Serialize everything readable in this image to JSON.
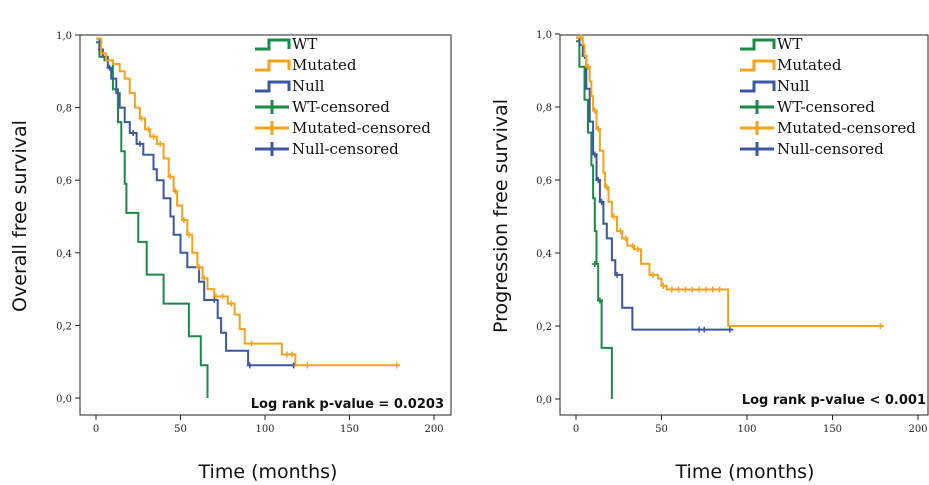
{
  "colors": {
    "WT": "#1a8a47",
    "Mutated": "#f5a31a",
    "Null": "#3b56a3"
  },
  "chart_data": [
    {
      "type": "line",
      "subtype": "kaplan-meier",
      "xlabel": "Time (months)",
      "ylabel": "Overall free survival",
      "xlim": [
        0,
        200
      ],
      "ylim": [
        0.0,
        1.0
      ],
      "xticks": [
        "0",
        "50",
        "100",
        "150",
        "200"
      ],
      "yticks": [
        "0,0",
        "0,2",
        "0,4",
        "0,6",
        "0,8",
        "1,0"
      ],
      "annotation": "Log rank p-value = 0.0203",
      "legend": [
        "WT",
        "Mutated",
        "Null",
        "WT-censored",
        "Mutated-censored",
        "Null-censored"
      ],
      "legend_position": "top-right",
      "series": [
        {
          "name": "WT",
          "steps": [
            [
              0,
              0.98
            ],
            [
              2,
              0.94
            ],
            [
              5,
              0.93
            ],
            [
              10,
              0.85
            ],
            [
              13,
              0.76
            ],
            [
              15,
              0.68
            ],
            [
              17,
              0.59
            ],
            [
              18,
              0.51
            ],
            [
              25,
              0.43
            ],
            [
              30,
              0.34
            ],
            [
              40,
              0.26
            ],
            [
              50,
              0.26
            ],
            [
              55,
              0.17
            ],
            [
              62,
              0.09
            ],
            [
              66,
              0.0
            ]
          ],
          "censored": [
            [
              2,
              0.98
            ]
          ]
        },
        {
          "name": "Mutated",
          "steps": [
            [
              0,
              0.99
            ],
            [
              3,
              0.95
            ],
            [
              6,
              0.93
            ],
            [
              10,
              0.92
            ],
            [
              14,
              0.9
            ],
            [
              17,
              0.88
            ],
            [
              20,
              0.84
            ],
            [
              23,
              0.8
            ],
            [
              26,
              0.77
            ],
            [
              29,
              0.74
            ],
            [
              32,
              0.72
            ],
            [
              36,
              0.7
            ],
            [
              40,
              0.66
            ],
            [
              43,
              0.61
            ],
            [
              46,
              0.57
            ],
            [
              48,
              0.53
            ],
            [
              51,
              0.49
            ],
            [
              54,
              0.45
            ],
            [
              57,
              0.4
            ],
            [
              60,
              0.36
            ],
            [
              63,
              0.33
            ],
            [
              66,
              0.3
            ],
            [
              70,
              0.28
            ],
            [
              78,
              0.26
            ],
            [
              82,
              0.23
            ],
            [
              85,
              0.19
            ],
            [
              88,
              0.15
            ],
            [
              95,
              0.15
            ],
            [
              110,
              0.12
            ],
            [
              118,
              0.09
            ],
            [
              180,
              0.09
            ]
          ],
          "censored": [
            [
              27,
              0.77
            ],
            [
              31,
              0.74
            ],
            [
              34,
              0.72
            ],
            [
              38,
              0.7
            ],
            [
              44,
              0.61
            ],
            [
              47,
              0.57
            ],
            [
              52,
              0.49
            ],
            [
              55,
              0.45
            ],
            [
              61,
              0.36
            ],
            [
              64,
              0.33
            ],
            [
              71,
              0.28
            ],
            [
              75,
              0.28
            ],
            [
              80,
              0.26
            ],
            [
              92,
              0.15
            ],
            [
              113,
              0.12
            ],
            [
              116,
              0.12
            ],
            [
              125,
              0.09
            ],
            [
              178,
              0.09
            ]
          ]
        },
        {
          "name": "Null",
          "steps": [
            [
              0,
              0.99
            ],
            [
              2,
              0.96
            ],
            [
              4,
              0.94
            ],
            [
              7,
              0.91
            ],
            [
              9,
              0.88
            ],
            [
              12,
              0.84
            ],
            [
              14,
              0.8
            ],
            [
              17,
              0.76
            ],
            [
              20,
              0.73
            ],
            [
              24,
              0.7
            ],
            [
              28,
              0.67
            ],
            [
              34,
              0.63
            ],
            [
              36,
              0.6
            ],
            [
              40,
              0.55
            ],
            [
              44,
              0.5
            ],
            [
              46,
              0.45
            ],
            [
              50,
              0.4
            ],
            [
              54,
              0.36
            ],
            [
              61,
              0.32
            ],
            [
              64,
              0.27
            ],
            [
              68,
              0.27
            ],
            [
              72,
              0.22
            ],
            [
              74,
              0.18
            ],
            [
              77,
              0.13
            ],
            [
              90,
              0.09
            ],
            [
              118,
              0.09
            ]
          ],
          "censored": [
            [
              3,
              0.96
            ],
            [
              8,
              0.91
            ],
            [
              22,
              0.73
            ],
            [
              26,
              0.7
            ],
            [
              70,
              0.27
            ],
            [
              91,
              0.09
            ],
            [
              117,
              0.09
            ]
          ]
        }
      ]
    },
    {
      "type": "line",
      "subtype": "kaplan-meier",
      "xlabel": "Time (months)",
      "ylabel": "Progression free survival",
      "xlim": [
        0,
        200
      ],
      "ylim": [
        0.0,
        1.0
      ],
      "xticks": [
        "0",
        "50",
        "100",
        "150",
        "200"
      ],
      "yticks": [
        "0,0",
        "0,2",
        "0,4",
        "0,6",
        "0,8",
        "1,0"
      ],
      "annotation": "Log rank p-value < 0.001",
      "legend": [
        "WT",
        "Mutated",
        "Null",
        "WT-censored",
        "Mutated-censored",
        "Null-censored"
      ],
      "legend_position": "top-right",
      "series": [
        {
          "name": "WT",
          "steps": [
            [
              0,
              0.98
            ],
            [
              2,
              0.91
            ],
            [
              5,
              0.82
            ],
            [
              7,
              0.73
            ],
            [
              9,
              0.64
            ],
            [
              10,
              0.55
            ],
            [
              11,
              0.46
            ],
            [
              12,
              0.37
            ],
            [
              13,
              0.27
            ],
            [
              15,
              0.14
            ],
            [
              21,
              0.0
            ]
          ],
          "censored": [
            [
              11,
              0.37
            ],
            [
              14,
              0.27
            ]
          ]
        },
        {
          "name": "Mutated",
          "steps": [
            [
              0,
              0.99
            ],
            [
              3,
              0.99
            ],
            [
              4,
              0.97
            ],
            [
              5,
              0.94
            ],
            [
              6,
              0.91
            ],
            [
              8,
              0.87
            ],
            [
              9,
              0.83
            ],
            [
              10,
              0.79
            ],
            [
              12,
              0.74
            ],
            [
              14,
              0.68
            ],
            [
              16,
              0.62
            ],
            [
              17,
              0.58
            ],
            [
              19,
              0.54
            ],
            [
              21,
              0.5
            ],
            [
              24,
              0.46
            ],
            [
              27,
              0.44
            ],
            [
              30,
              0.42
            ],
            [
              34,
              0.41
            ],
            [
              38,
              0.37
            ],
            [
              43,
              0.34
            ],
            [
              48,
              0.33
            ],
            [
              50,
              0.31
            ],
            [
              53,
              0.3
            ],
            [
              88,
              0.3
            ],
            [
              89,
              0.2
            ],
            [
              180,
              0.2
            ]
          ],
          "censored": [
            [
              3,
              0.99
            ],
            [
              7,
              0.91
            ],
            [
              11,
              0.79
            ],
            [
              13,
              0.74
            ],
            [
              18,
              0.58
            ],
            [
              22,
              0.5
            ],
            [
              26,
              0.46
            ],
            [
              29,
              0.44
            ],
            [
              33,
              0.42
            ],
            [
              36,
              0.41
            ],
            [
              45,
              0.34
            ],
            [
              51,
              0.31
            ],
            [
              56,
              0.3
            ],
            [
              60,
              0.3
            ],
            [
              64,
              0.3
            ],
            [
              68,
              0.3
            ],
            [
              72,
              0.3
            ],
            [
              76,
              0.3
            ],
            [
              80,
              0.3
            ],
            [
              84,
              0.3
            ],
            [
              178,
              0.2
            ]
          ]
        },
        {
          "name": "Null",
          "steps": [
            [
              0,
              0.99
            ],
            [
              2,
              0.97
            ],
            [
              4,
              0.94
            ],
            [
              6,
              0.85
            ],
            [
              8,
              0.76
            ],
            [
              10,
              0.67
            ],
            [
              12,
              0.6
            ],
            [
              14,
              0.54
            ],
            [
              16,
              0.48
            ],
            [
              18,
              0.44
            ],
            [
              21,
              0.38
            ],
            [
              23,
              0.34
            ],
            [
              27,
              0.25
            ],
            [
              33,
              0.19
            ],
            [
              92,
              0.19
            ]
          ],
          "censored": [
            [
              5,
              0.94
            ],
            [
              11,
              0.67
            ],
            [
              13,
              0.6
            ],
            [
              15,
              0.54
            ],
            [
              24,
              0.34
            ],
            [
              72,
              0.19
            ],
            [
              75,
              0.19
            ],
            [
              90,
              0.19
            ]
          ]
        }
      ]
    }
  ]
}
